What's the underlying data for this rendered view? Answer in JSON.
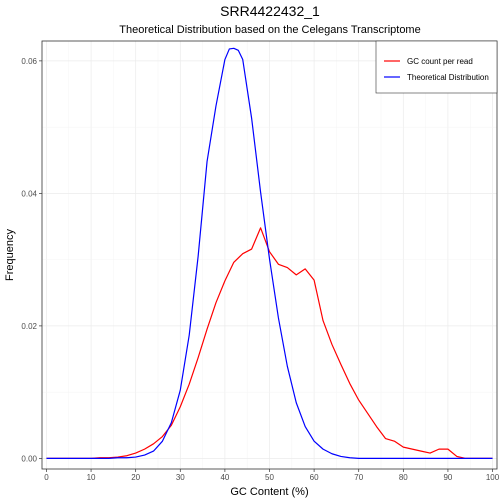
{
  "chart_data": {
    "type": "line",
    "title": "SRR4422432_1",
    "subtitle": "Theoretical Distribution based on the Celegans Transcriptome",
    "xlabel": "GC Content (%)",
    "ylabel": "Frequency",
    "xlim": [
      -1,
      101
    ],
    "ylim": [
      -0.0016,
      0.063
    ],
    "xticks": [
      "0",
      "10",
      "20",
      "30",
      "40",
      "50",
      "60",
      "70",
      "80",
      "90",
      "100"
    ],
    "xtick_values": [
      0,
      10,
      20,
      30,
      40,
      50,
      60,
      70,
      80,
      90,
      100
    ],
    "yticks": [
      "0.00",
      "0.02",
      "0.04",
      "0.06"
    ],
    "ytick_values": [
      0,
      0.02,
      0.04,
      0.06
    ],
    "grid": true,
    "legend_position": "top-right",
    "series": [
      {
        "name": "GC count per read",
        "color": "#ff0000",
        "x": [
          0,
          2,
          4,
          6,
          8,
          10,
          12,
          14,
          16,
          18,
          20,
          22,
          24,
          26,
          28,
          30,
          32,
          34,
          36,
          38,
          40,
          42,
          44,
          46,
          48,
          50,
          52,
          54,
          56,
          58,
          60,
          62,
          64,
          66,
          68,
          70,
          72,
          74,
          76,
          78,
          80,
          82,
          84,
          86,
          88,
          90,
          92,
          94,
          96,
          98,
          100
        ],
        "y": [
          0,
          0,
          0,
          0,
          0,
          0,
          0.0001,
          0.0001,
          0.0002,
          0.0004,
          0.0008,
          0.0014,
          0.0022,
          0.0033,
          0.005,
          0.0078,
          0.0112,
          0.0152,
          0.0195,
          0.0235,
          0.0268,
          0.0296,
          0.0309,
          0.0316,
          0.0348,
          0.0312,
          0.0293,
          0.0288,
          0.0277,
          0.0286,
          0.0269,
          0.0208,
          0.0172,
          0.0142,
          0.0113,
          0.0088,
          0.0068,
          0.0048,
          0.003,
          0.0026,
          0.0017,
          0.0014,
          0.0011,
          0.0008,
          0.0014,
          0.0014,
          0.0003,
          0,
          0,
          0,
          0
        ]
      },
      {
        "name": "Theoretical Distribution",
        "color": "#0000ff",
        "x": [
          0,
          2,
          4,
          6,
          8,
          10,
          12,
          14,
          16,
          18,
          20,
          22,
          24,
          26,
          28,
          30,
          32,
          34,
          36,
          38,
          40,
          41,
          42,
          43,
          44,
          46,
          48,
          50,
          52,
          54,
          56,
          58,
          60,
          62,
          64,
          66,
          68,
          70,
          72,
          74,
          76,
          78,
          80,
          82,
          84,
          86,
          88,
          90,
          92,
          94,
          96,
          98,
          100
        ],
        "y": [
          0,
          0,
          0,
          0,
          0,
          0,
          0,
          0,
          0.0001,
          0.0001,
          0.0002,
          0.0005,
          0.0011,
          0.0026,
          0.0054,
          0.0103,
          0.0186,
          0.0305,
          0.0448,
          0.0532,
          0.0602,
          0.0618,
          0.0619,
          0.0616,
          0.0602,
          0.0513,
          0.0402,
          0.0301,
          0.0212,
          0.0139,
          0.0084,
          0.0048,
          0.0026,
          0.0014,
          0.0007,
          0.0003,
          0.0001,
          0,
          0,
          0,
          0,
          0,
          0,
          0,
          0,
          0,
          0,
          0,
          0,
          0,
          0,
          0,
          0
        ]
      }
    ]
  }
}
